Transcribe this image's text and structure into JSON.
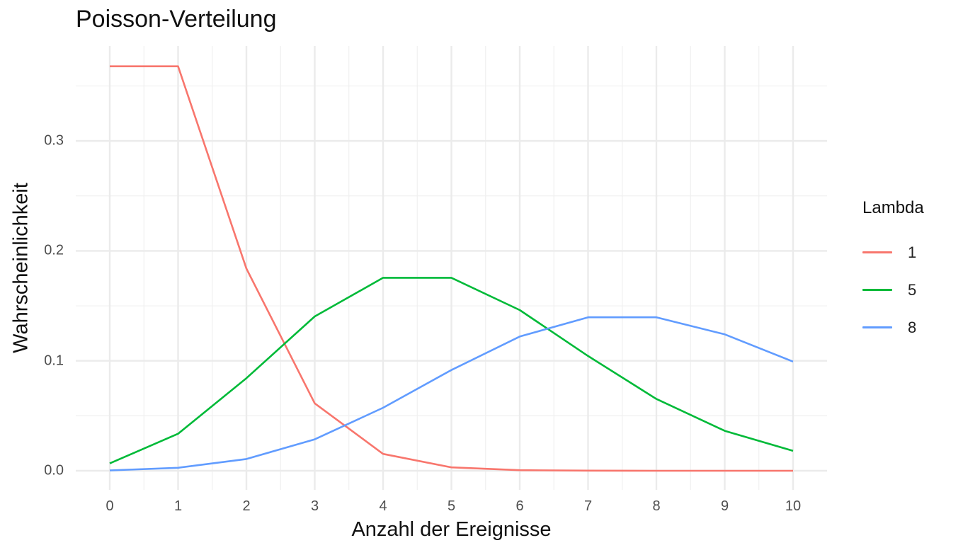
{
  "chart_data": {
    "type": "line",
    "title": "Poisson-Verteilung",
    "xlabel": "Anzahl der Ereignisse",
    "ylabel": "Wahrscheinlichkeit",
    "x": [
      0,
      1,
      2,
      3,
      4,
      5,
      6,
      7,
      8,
      9,
      10
    ],
    "xticks": [
      "0",
      "1",
      "2",
      "3",
      "4",
      "5",
      "6",
      "7",
      "8",
      "9",
      "10"
    ],
    "yticks": [
      "0.0",
      "0.1",
      "0.2",
      "0.3"
    ],
    "ytick_values": [
      0.0,
      0.1,
      0.2,
      0.3
    ],
    "xlim": [
      -1,
      11.05
    ],
    "ylim": [
      -0.0175,
      0.386
    ],
    "grid": true,
    "legend": {
      "title": "Lambda",
      "position": "right"
    },
    "series": [
      {
        "name": "1",
        "color": "#F8766D",
        "values": [
          0.3679,
          0.3679,
          0.1839,
          0.0613,
          0.0153,
          0.0031,
          0.0005,
          0.0001,
          0.0,
          0.0,
          0.0
        ]
      },
      {
        "name": "5",
        "color": "#00BA38",
        "values": [
          0.0067,
          0.0337,
          0.0842,
          0.1404,
          0.1755,
          0.1755,
          0.1462,
          0.1044,
          0.0653,
          0.0363,
          0.0181
        ]
      },
      {
        "name": "8",
        "color": "#619CFF",
        "values": [
          0.0003,
          0.0027,
          0.0107,
          0.0286,
          0.0573,
          0.0916,
          0.1221,
          0.1396,
          0.1396,
          0.1241,
          0.0993
        ]
      }
    ]
  }
}
